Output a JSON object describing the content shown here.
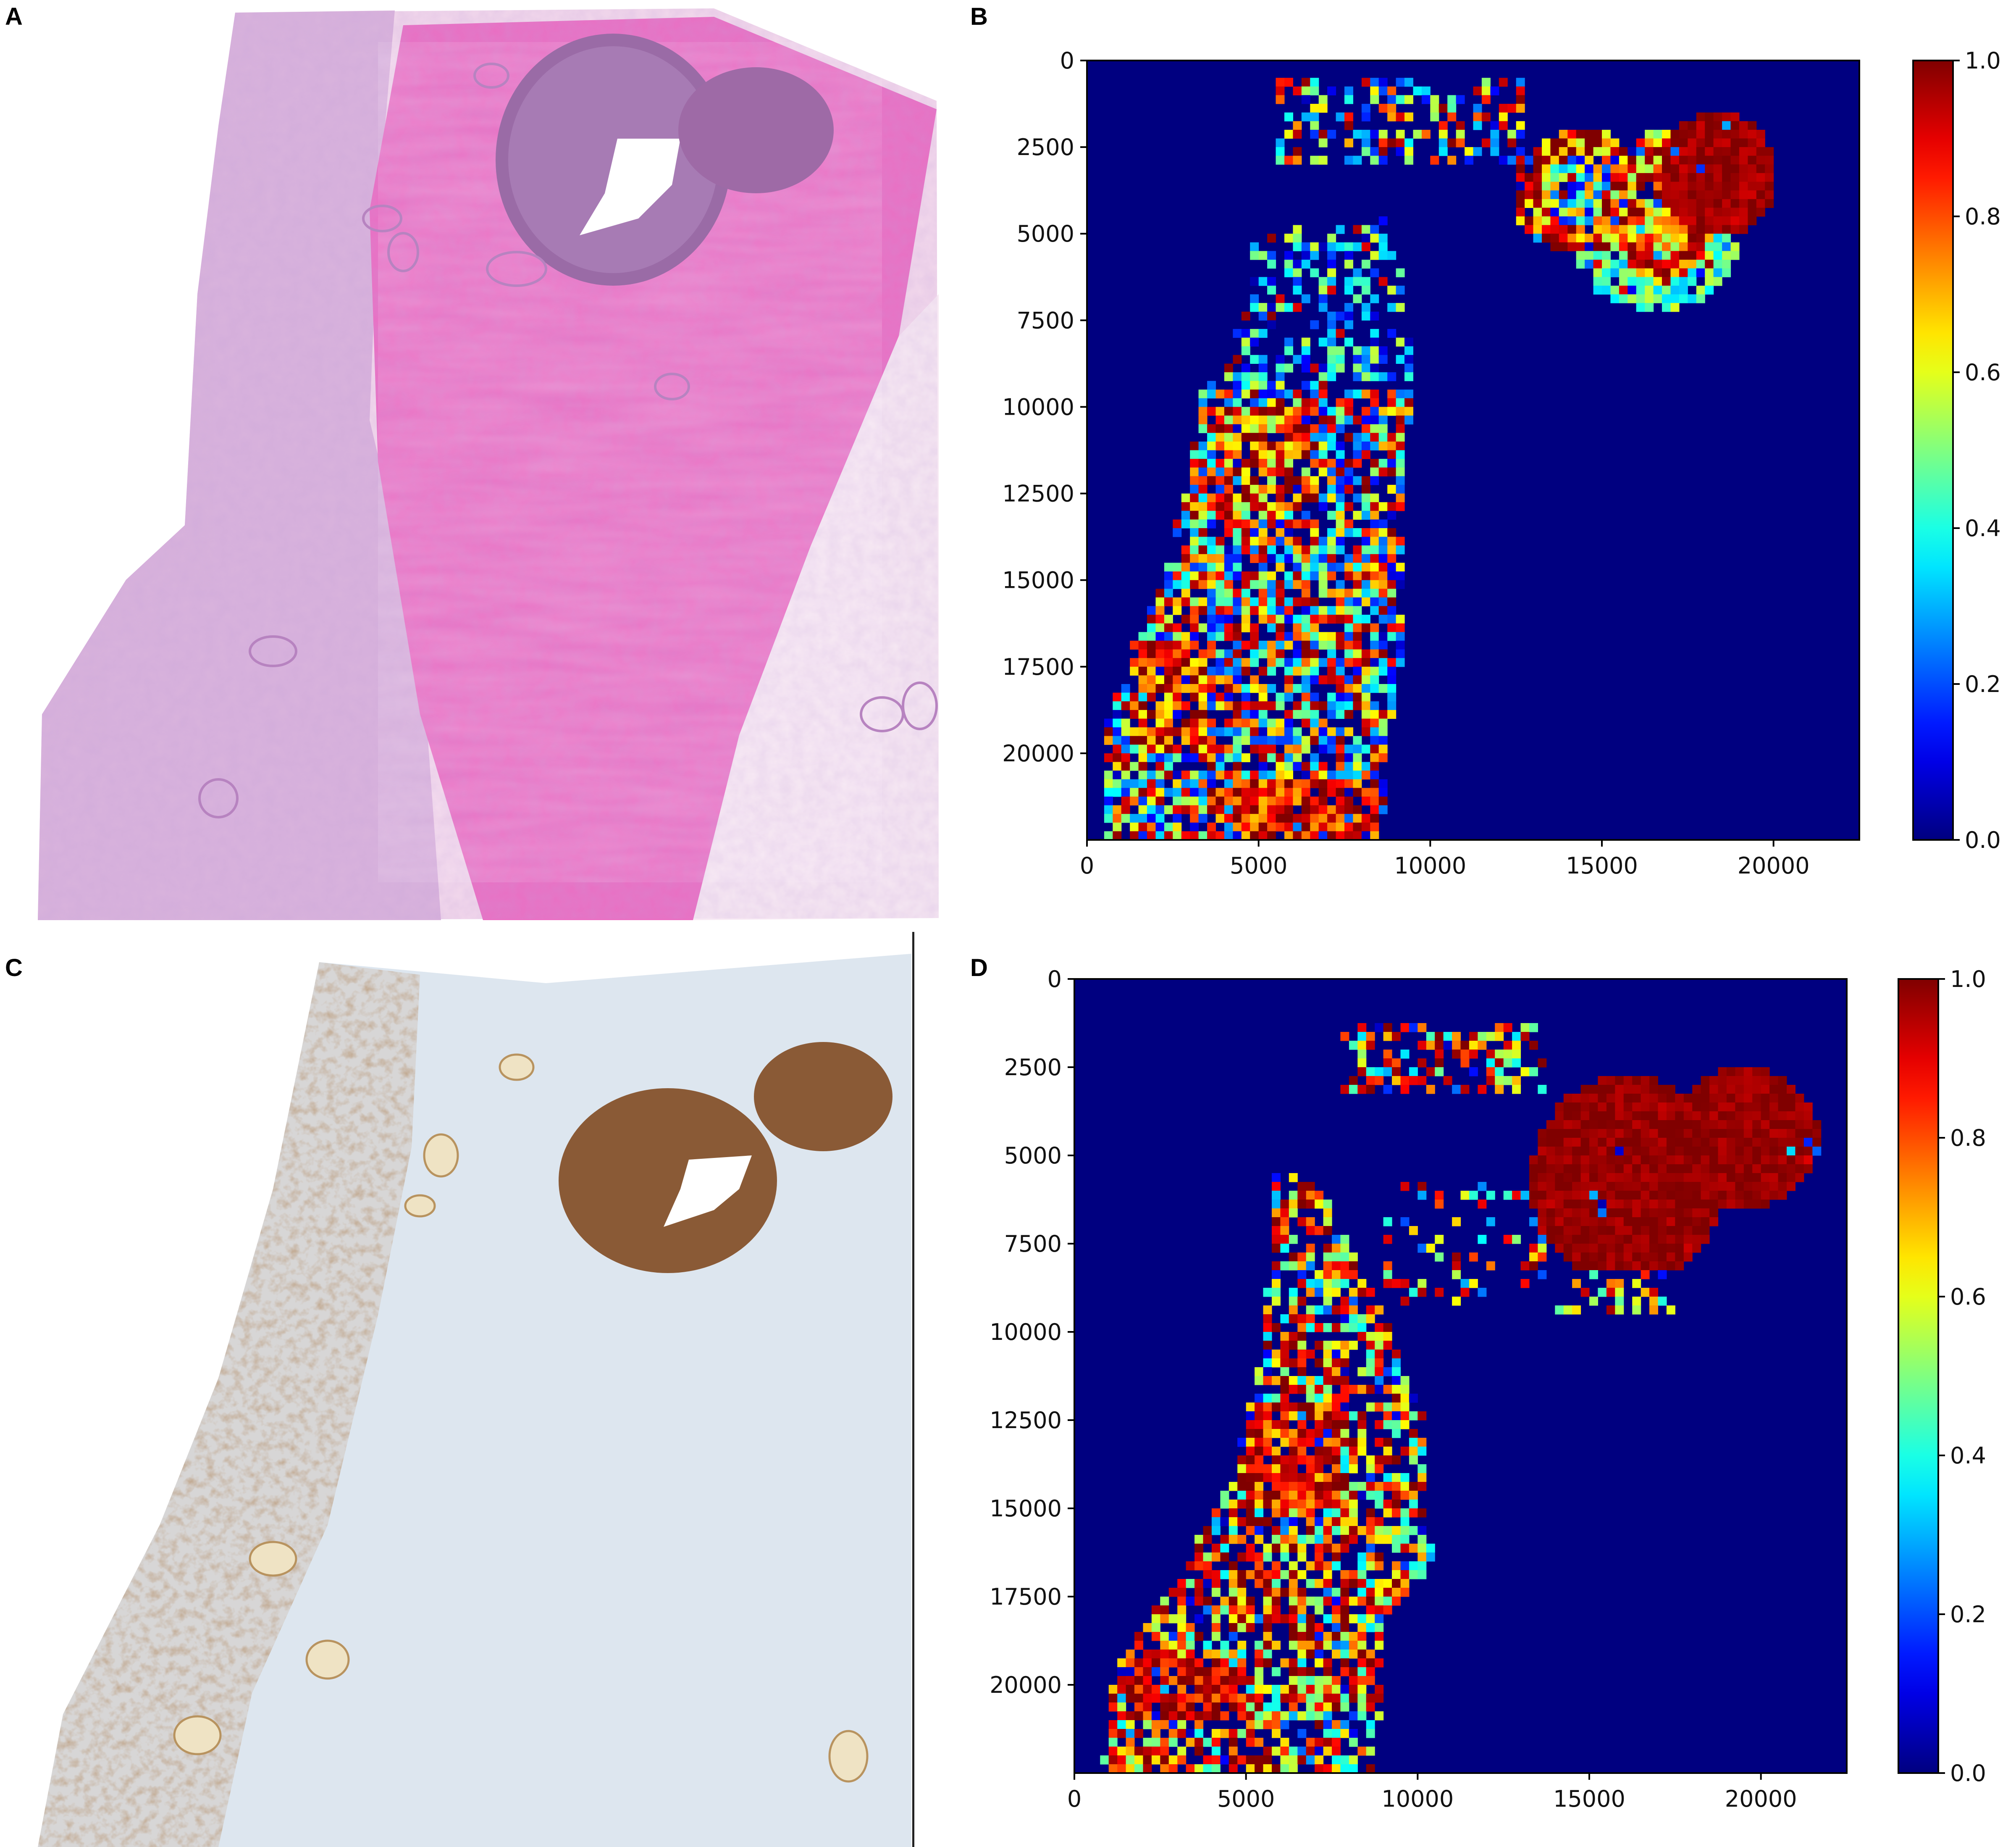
{
  "panels": {
    "a": {
      "letter": "A"
    },
    "b": {
      "letter": "B"
    },
    "c": {
      "letter": "C"
    },
    "d": {
      "letter": "D"
    }
  },
  "colors": {
    "jet_low": "#00007f",
    "jet_high": "#7f0000",
    "he_stroma": "#e97fc6",
    "he_epithelium": "#c79ad8",
    "ihc_positive": "#8a5a36",
    "ihc_background": "#dde6ef"
  },
  "slides": {
    "a": {
      "stain": "he",
      "icon": "he-tissue-slide"
    },
    "c": {
      "stain": "ihc",
      "icon": "ihc-tissue-slide"
    }
  },
  "chart_data": [
    {
      "panel": "B",
      "type": "heatmap",
      "colormap": "jet",
      "xlim": [
        0,
        22500
      ],
      "ylim": [
        22500,
        0
      ],
      "xticks": [
        "0",
        "5000",
        "10000",
        "15000",
        "20000"
      ],
      "yticks": [
        "0",
        "2500",
        "5000",
        "7500",
        "10000",
        "12500",
        "15000",
        "17500",
        "20000"
      ],
      "colorbar_ticks": [
        "0.0",
        "0.2",
        "0.4",
        "0.6",
        "0.8",
        "1.0"
      ],
      "colorbar_range": [
        0,
        1
      ],
      "regions": [
        {
          "shape": "poly",
          "points": [
            [
              3400,
              9200
            ],
            [
              9500,
              9500
            ],
            [
              9200,
              12000
            ],
            [
              9300,
              17000
            ],
            [
              8800,
              19500
            ],
            [
              8600,
              22500
            ],
            [
              600,
              22500
            ],
            [
              600,
              19000
            ],
            [
              2000,
              15500
            ],
            [
              3000,
              12000
            ]
          ],
          "level": 0.55,
          "var": 0.45,
          "density": 0.8
        },
        {
          "shape": "rect",
          "x": [
            1200,
            3500
          ],
          "y": [
            16800,
            19800
          ],
          "level": 0.85,
          "var": 0.25,
          "density": 0.9
        },
        {
          "shape": "rect",
          "x": [
            3500,
            8500
          ],
          "y": [
            20700,
            22500
          ],
          "level": 0.88,
          "var": 0.2,
          "density": 0.95
        },
        {
          "shape": "rect",
          "x": [
            3800,
            6800
          ],
          "y": [
            10000,
            13000
          ],
          "level": 0.8,
          "var": 0.3,
          "density": 0.85
        },
        {
          "shape": "poly",
          "points": [
            [
              4600,
              4800
            ],
            [
              9000,
              4600
            ],
            [
              9500,
              9200
            ],
            [
              4000,
              9500
            ]
          ],
          "level": 0.3,
          "var": 0.3,
          "density": 0.45
        },
        {
          "shape": "rect",
          "x": [
            5400,
            12800
          ],
          "y": [
            500,
            2900
          ],
          "level": 0.55,
          "var": 0.45,
          "density": 0.45
        },
        {
          "shape": "ellipse",
          "cx": 16600,
          "cy": 5600,
          "rx": 2300,
          "ry": 1600,
          "level": 0.45,
          "var": 0.15,
          "density": 0.9
        },
        {
          "shape": "ellipse",
          "cx": 14400,
          "cy": 3800,
          "rx": 2000,
          "ry": 1800,
          "level": 0.85,
          "var": 0.3,
          "density": 0.95
        },
        {
          "shape": "ellipse",
          "cx": 14200,
          "cy": 3700,
          "rx": 1000,
          "ry": 1000,
          "level": 0.4,
          "var": 0.35,
          "density": 0.95
        },
        {
          "shape": "ellipse",
          "cx": 16800,
          "cy": 4200,
          "rx": 1500,
          "ry": 2200,
          "level": 0.8,
          "var": 0.3,
          "density": 0.95
        },
        {
          "shape": "ellipse",
          "cx": 18400,
          "cy": 3300,
          "rx": 1700,
          "ry": 1800,
          "level": 0.97,
          "var": 0.05,
          "density": 1.0
        }
      ]
    },
    {
      "panel": "D",
      "type": "heatmap",
      "colormap": "jet",
      "xlim": [
        0,
        22500
      ],
      "ylim": [
        22500,
        0
      ],
      "xticks": [
        "0",
        "5000",
        "10000",
        "15000",
        "20000"
      ],
      "yticks": [
        "0",
        "2500",
        "5000",
        "7500",
        "10000",
        "12500",
        "15000",
        "17500",
        "20000"
      ],
      "colorbar_ticks": [
        "0.0",
        "0.2",
        "0.4",
        "0.6",
        "0.8",
        "1.0"
      ],
      "colorbar_range": [
        0,
        1
      ],
      "regions": [
        {
          "shape": "poly",
          "points": [
            [
              5800,
              5500
            ],
            [
              7200,
              5800
            ],
            [
              8800,
              9000
            ],
            [
              10200,
              12500
            ],
            [
              10400,
              16500
            ],
            [
              9000,
              18500
            ],
            [
              8800,
              22500
            ],
            [
              800,
              22500
            ],
            [
              1200,
              19500
            ],
            [
              3000,
              17000
            ],
            [
              4600,
              14000
            ],
            [
              5500,
              10500
            ]
          ],
          "level": 0.7,
          "var": 0.35,
          "density": 0.7
        },
        {
          "shape": "rect",
          "x": [
            1500,
            5000
          ],
          "y": [
            19200,
            21000
          ],
          "level": 0.9,
          "var": 0.15,
          "density": 0.9
        },
        {
          "shape": "rect",
          "x": [
            5000,
            7800
          ],
          "y": [
            12000,
            15000
          ],
          "level": 0.85,
          "var": 0.2,
          "density": 0.85
        },
        {
          "shape": "rect",
          "x": [
            7800,
            13800
          ],
          "y": [
            1200,
            3300
          ],
          "level": 0.7,
          "var": 0.35,
          "density": 0.5
        },
        {
          "shape": "rect",
          "x": [
            9000,
            13800
          ],
          "y": [
            5800,
            9300
          ],
          "level": 0.6,
          "var": 0.4,
          "density": 0.25
        },
        {
          "shape": "ellipse",
          "cx": 16100,
          "cy": 5700,
          "rx": 2800,
          "ry": 3000,
          "level": 0.98,
          "var": 0.04,
          "density": 1.0
        },
        {
          "shape": "ellipse",
          "cx": 19500,
          "cy": 4500,
          "rx": 2200,
          "ry": 2000,
          "level": 0.98,
          "var": 0.04,
          "density": 1.0
        },
        {
          "shape": "rect",
          "x": [
            14000,
            17500
          ],
          "y": [
            8200,
            9600
          ],
          "level": 0.7,
          "var": 0.3,
          "density": 0.3
        }
      ]
    }
  ]
}
